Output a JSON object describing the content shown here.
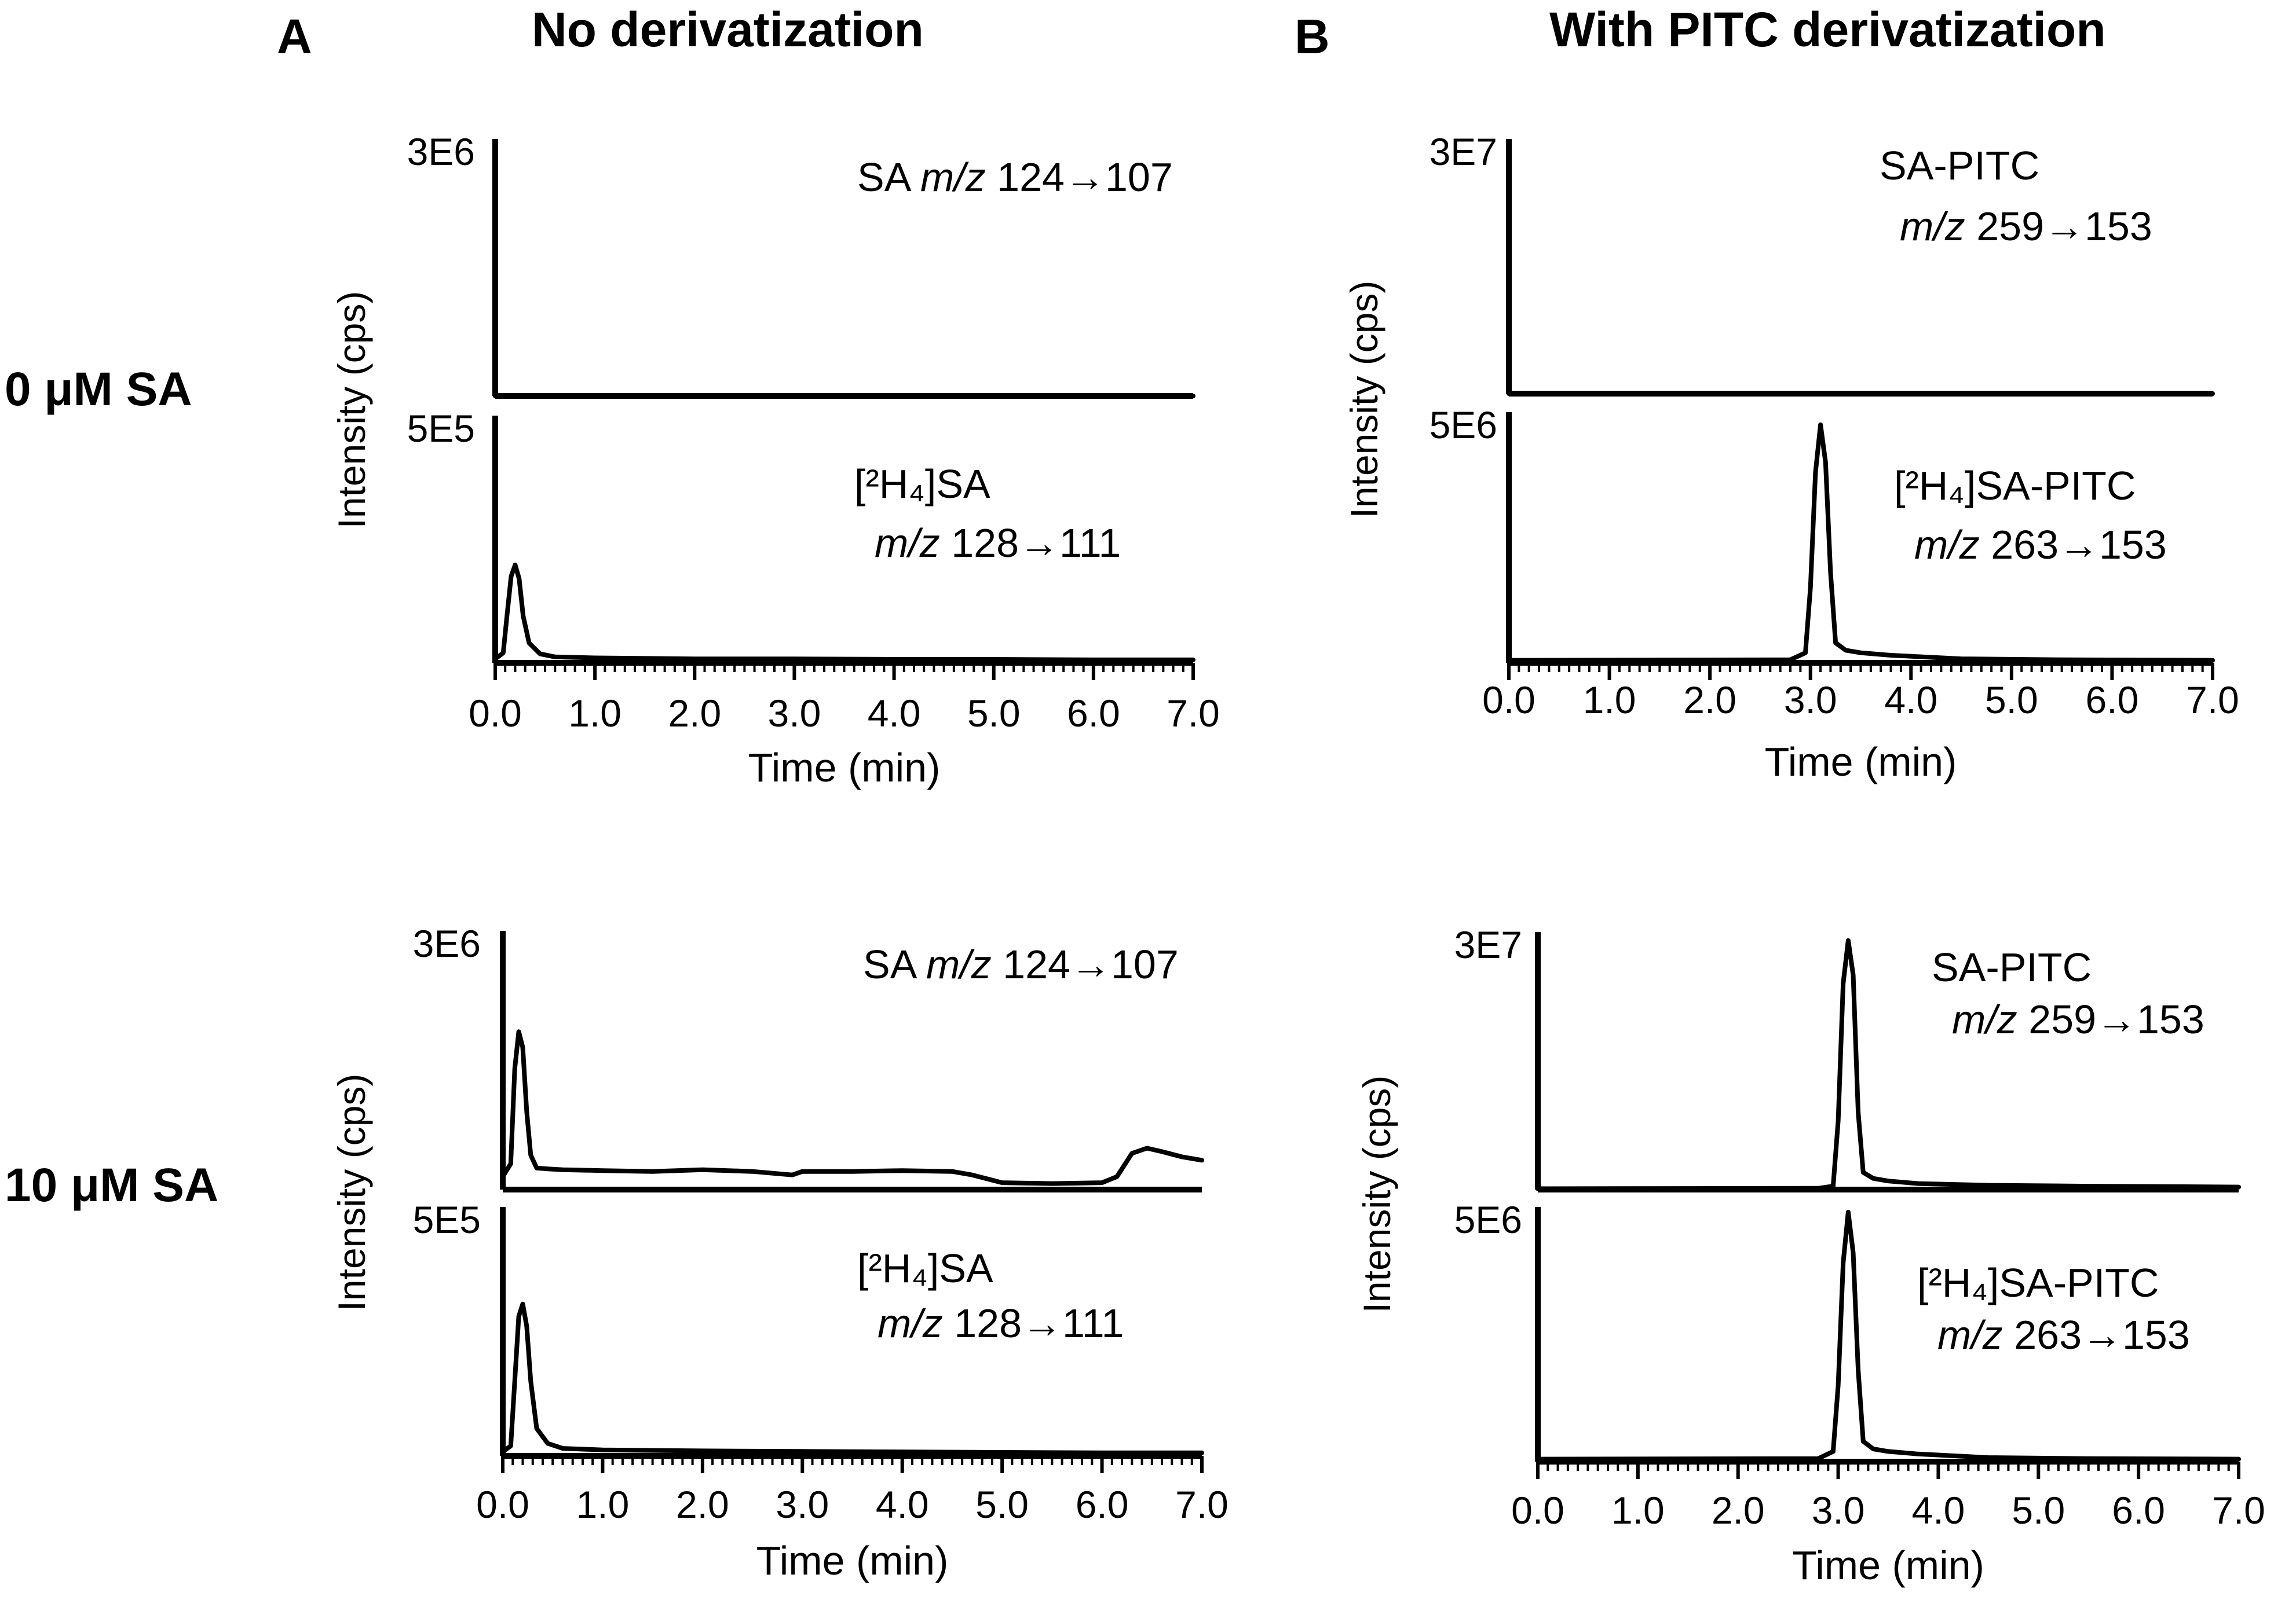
{
  "panel_labels": [
    "A",
    "B"
  ],
  "panel_titles": [
    "No derivatization",
    "With PITC derivatization"
  ],
  "row_labels": [
    "0 μM SA",
    "10 μM SA"
  ],
  "chart_data": [
    {
      "type": "line",
      "panel": "A",
      "row": "0 μM SA",
      "xlabel": "Time (min)",
      "ylabel": "Intensity (cps)",
      "xlim": [
        0,
        7
      ],
      "xticks": [
        "0.0",
        "1.0",
        "2.0",
        "3.0",
        "4.0",
        "5.0",
        "6.0",
        "7.0"
      ],
      "tracks": [
        {
          "scale_label": "3E6",
          "ymax": 3000000,
          "label": "SA",
          "mz_prefix": "m/z",
          "transition": "124→107",
          "label_lines": 1,
          "x": [
            0,
            7
          ],
          "y": [
            0,
            0
          ]
        },
        {
          "scale_label": "5E5",
          "ymax": 500000,
          "label": "[²H₄]SA",
          "mz_prefix": "m/z",
          "transition": "128→111",
          "label_lines": 2,
          "x": [
            0,
            0.08,
            0.12,
            0.16,
            0.2,
            0.24,
            0.28,
            0.34,
            0.45,
            0.6,
            1.0,
            2.0,
            3.0,
            4.0,
            5.0,
            6.0,
            7.0
          ],
          "y": [
            8000,
            20000,
            100000,
            175000,
            198000,
            170000,
            95000,
            40000,
            18000,
            12000,
            10000,
            8000,
            8000,
            7000,
            7000,
            6000,
            6000
          ]
        }
      ]
    },
    {
      "type": "line",
      "panel": "B",
      "row": "0 μM SA",
      "xlabel": "Time (min)",
      "ylabel": "Intensity (cps)",
      "xlim": [
        0,
        7
      ],
      "xticks": [
        "0.0",
        "1.0",
        "2.0",
        "3.0",
        "4.0",
        "5.0",
        "6.0",
        "7.0"
      ],
      "tracks": [
        {
          "scale_label": "3E7",
          "ymax": 30000000,
          "label": "SA-PITC",
          "mz_prefix": "m/z",
          "transition": "259→153",
          "label_lines": 2,
          "x": [
            0,
            7
          ],
          "y": [
            0,
            0
          ]
        },
        {
          "scale_label": "5E6",
          "ymax": 5000000,
          "label": "[²H₄]SA-PITC",
          "mz_prefix": "m/z",
          "transition": "263→153",
          "label_lines": 2,
          "x": [
            0,
            2.8,
            2.95,
            3.0,
            3.05,
            3.1,
            3.15,
            3.2,
            3.25,
            3.35,
            3.5,
            3.8,
            4.5,
            5.5,
            7.0
          ],
          "y": [
            50000,
            60000,
            200000,
            1500000,
            3800000,
            4750000,
            4000000,
            1800000,
            400000,
            250000,
            200000,
            150000,
            80000,
            60000,
            50000
          ]
        }
      ]
    },
    {
      "type": "line",
      "panel": "A",
      "row": "10 μM SA",
      "xlabel": "Time (min)",
      "ylabel": "Intensity (cps)",
      "xlim": [
        0,
        7
      ],
      "xticks": [
        "0.0",
        "1.0",
        "2.0",
        "3.0",
        "4.0",
        "5.0",
        "6.0",
        "7.0"
      ],
      "tracks": [
        {
          "scale_label": "3E6",
          "ymax": 3000000,
          "label": "SA",
          "mz_prefix": "m/z",
          "transition": "124→107",
          "label_lines": 1,
          "x": [
            0,
            0.08,
            0.12,
            0.16,
            0.2,
            0.24,
            0.28,
            0.34,
            0.45,
            0.6,
            1.0,
            1.5,
            2.0,
            2.5,
            2.9,
            3.0,
            3.5,
            4.0,
            4.5,
            4.7,
            5.0,
            5.5,
            6.0,
            6.15,
            6.3,
            6.45,
            6.6,
            6.8,
            7.0
          ],
          "y": [
            150000,
            300000,
            1400000,
            1830000,
            1650000,
            900000,
            400000,
            250000,
            240000,
            230000,
            220000,
            210000,
            230000,
            210000,
            170000,
            210000,
            210000,
            220000,
            210000,
            170000,
            80000,
            70000,
            80000,
            150000,
            420000,
            480000,
            440000,
            380000,
            340000
          ]
        },
        {
          "scale_label": "5E5",
          "ymax": 500000,
          "label": "[²H₄]SA",
          "mz_prefix": "m/z",
          "transition": "128→111",
          "label_lines": 2,
          "x": [
            0,
            0.08,
            0.12,
            0.16,
            0.2,
            0.24,
            0.28,
            0.34,
            0.45,
            0.6,
            1.0,
            2.0,
            3.0,
            4.0,
            5.0,
            6.0,
            7.0
          ],
          "y": [
            8000,
            20000,
            150000,
            280000,
            305000,
            260000,
            150000,
            55000,
            25000,
            15000,
            12000,
            10000,
            9000,
            8000,
            7000,
            6000,
            6000
          ]
        }
      ]
    },
    {
      "type": "line",
      "panel": "B",
      "row": "10 μM SA",
      "xlabel": "Time (min)",
      "ylabel": "Intensity (cps)",
      "xlim": [
        0,
        7
      ],
      "xticks": [
        "0.0",
        "1.0",
        "2.0",
        "3.0",
        "4.0",
        "5.0",
        "6.0",
        "7.0"
      ],
      "tracks": [
        {
          "scale_label": "3E7",
          "ymax": 30000000,
          "label": "SA-PITC",
          "mz_prefix": "m/z",
          "transition": "259→153",
          "label_lines": 2,
          "x": [
            0,
            2.8,
            2.95,
            3.0,
            3.05,
            3.1,
            3.15,
            3.2,
            3.25,
            3.35,
            3.5,
            3.8,
            4.5,
            5.5,
            7.0
          ],
          "y": [
            100000,
            150000,
            400000,
            8000000,
            24000000,
            29000000,
            25000000,
            9000000,
            2000000,
            1300000,
            1000000,
            700000,
            500000,
            400000,
            300000
          ]
        },
        {
          "scale_label": "5E6",
          "ymax": 5000000,
          "label": "[²H₄]SA-PITC",
          "mz_prefix": "m/z",
          "transition": "263→153",
          "label_lines": 2,
          "x": [
            0,
            2.8,
            2.95,
            3.0,
            3.05,
            3.1,
            3.15,
            3.2,
            3.25,
            3.35,
            3.5,
            3.8,
            4.5,
            5.5,
            7.0
          ],
          "y": [
            50000,
            60000,
            200000,
            1500000,
            3900000,
            4900000,
            4100000,
            1800000,
            400000,
            250000,
            200000,
            150000,
            80000,
            60000,
            50000
          ]
        }
      ]
    }
  ]
}
